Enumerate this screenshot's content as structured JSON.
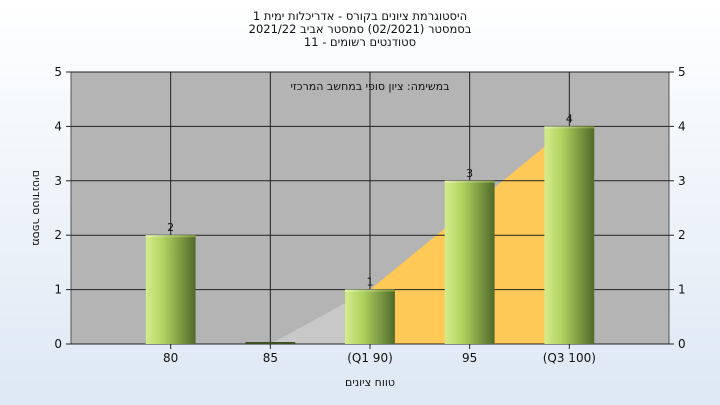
{
  "chart_data": {
    "type": "bar",
    "title_lines": [
      "היסטוגרמת ציונים בקורס - אדריכלות ימית 1",
      "בסמסטר  (02/2021)  סמסטר אביב 2021/22",
      "סטודנטים רשומים - 11"
    ],
    "annotation": "במשימה: ציון סופי במחשב המרכזי",
    "categories": [
      "80",
      "85",
      "(Q1 90)",
      "95",
      "(Q3 100)"
    ],
    "values": [
      2,
      0,
      1,
      3,
      4
    ],
    "data_labels": [
      "2",
      "",
      "1",
      "3",
      "4"
    ],
    "xlabel": "טווח ציונים",
    "ylabel": "מספר סטודנטים",
    "ylim": [
      0,
      5
    ],
    "yticks": [
      "0",
      "1",
      "2",
      "3",
      "4",
      "5"
    ],
    "grid": true,
    "colors": {
      "plot_bg": "#b4b4b4",
      "bar_light": "#c6e27a",
      "bar_dark": "#5b7a2c",
      "quartile_fill": "#ffc957",
      "lower_fill": "#c8c8c8"
    }
  }
}
